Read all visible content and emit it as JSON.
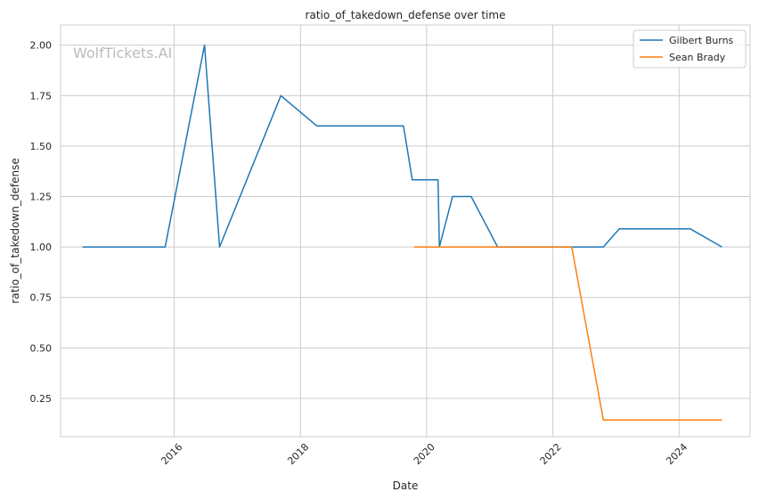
{
  "chart_data": {
    "type": "line",
    "title": "ratio_of_takedown_defense over time",
    "xlabel": "Date",
    "ylabel": "ratio_of_takedown_defense",
    "watermark": "WolfTickets.AI",
    "xlim": [
      "2014-03-15",
      "2025-02-15"
    ],
    "ylim": [
      0.06,
      2.1
    ],
    "x_ticks": [
      {
        "date": "2016-01-01",
        "label": "2016"
      },
      {
        "date": "2018-01-01",
        "label": "2018"
      },
      {
        "date": "2020-01-01",
        "label": "2020"
      },
      {
        "date": "2022-01-01",
        "label": "2022"
      },
      {
        "date": "2024-01-01",
        "label": "2024"
      }
    ],
    "y_ticks": [
      {
        "value": 0.25,
        "label": "0.25"
      },
      {
        "value": 0.5,
        "label": "0.50"
      },
      {
        "value": 0.75,
        "label": "0.75"
      },
      {
        "value": 1.0,
        "label": "1.00"
      },
      {
        "value": 1.25,
        "label": "1.25"
      },
      {
        "value": 1.5,
        "label": "1.50"
      },
      {
        "value": 1.75,
        "label": "1.75"
      },
      {
        "value": 2.0,
        "label": "2.00"
      }
    ],
    "grid": true,
    "legend_position": "top-right",
    "series": [
      {
        "name": "Gilbert Burns",
        "color": "#1f77b4",
        "points": [
          {
            "x": "2014-07-20",
            "y": 1.0
          },
          {
            "x": "2015-11-10",
            "y": 1.0
          },
          {
            "x": "2016-06-25",
            "y": 2.0
          },
          {
            "x": "2016-09-20",
            "y": 1.0
          },
          {
            "x": "2017-09-10",
            "y": 1.75
          },
          {
            "x": "2018-04-05",
            "y": 1.6
          },
          {
            "x": "2019-08-20",
            "y": 1.6
          },
          {
            "x": "2019-10-10",
            "y": 1.333
          },
          {
            "x": "2020-03-07",
            "y": 1.333
          },
          {
            "x": "2020-03-15",
            "y": 1.0
          },
          {
            "x": "2020-05-30",
            "y": 1.25
          },
          {
            "x": "2020-09-15",
            "y": 1.25
          },
          {
            "x": "2021-02-15",
            "y": 1.0
          },
          {
            "x": "2022-04-10",
            "y": 1.0
          },
          {
            "x": "2022-10-20",
            "y": 1.0
          },
          {
            "x": "2023-01-20",
            "y": 1.09
          },
          {
            "x": "2024-03-05",
            "y": 1.09
          },
          {
            "x": "2024-09-05",
            "y": 1.0
          }
        ]
      },
      {
        "name": "Sean Brady",
        "color": "#ff7f0e",
        "points": [
          {
            "x": "2019-10-20",
            "y": 1.0
          },
          {
            "x": "2022-04-20",
            "y": 1.0
          },
          {
            "x": "2022-10-20",
            "y": 0.143
          },
          {
            "x": "2024-09-05",
            "y": 0.143
          }
        ]
      }
    ]
  }
}
